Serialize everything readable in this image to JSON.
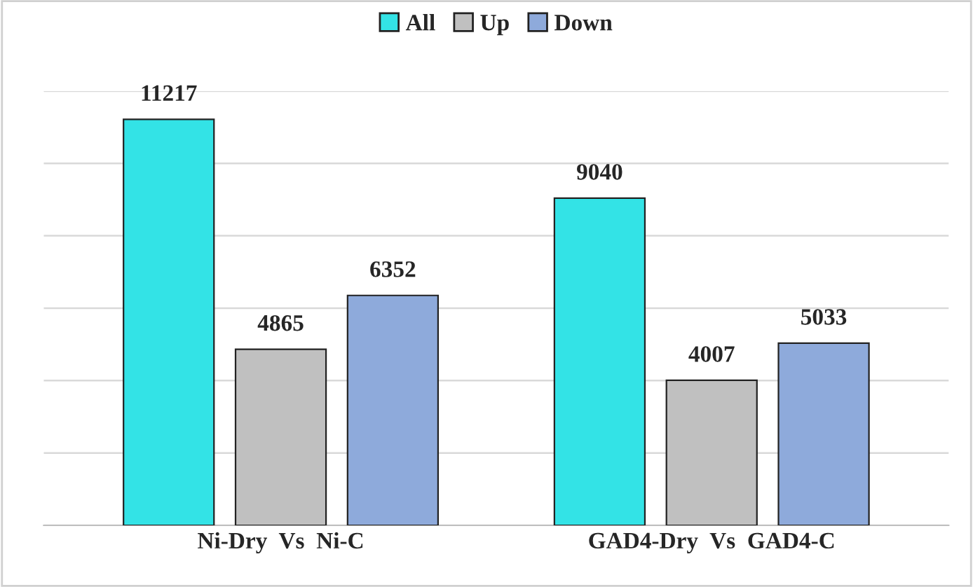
{
  "chart_data": {
    "type": "bar",
    "categories": [
      "Ni-Dry  Vs  Ni-C",
      "GAD4-Dry  Vs  GAD4-C"
    ],
    "series": [
      {
        "name": "All",
        "color": "#33e3e6",
        "values": [
          11217,
          9040
        ]
      },
      {
        "name": "Up",
        "color": "#c0c0c0",
        "values": [
          4865,
          4007
        ]
      },
      {
        "name": "Down",
        "color": "#8eaadb",
        "values": [
          6352,
          5033
        ]
      }
    ],
    "ylim": [
      0,
      12000
    ],
    "yticks": [
      {
        "value": 0,
        "label": null
      },
      {
        "value": 2000,
        "label": null
      },
      {
        "value": 4000,
        "label": null
      },
      {
        "value": 6000,
        "label": null
      },
      {
        "value": 8000,
        "label": null
      },
      {
        "value": 10000,
        "label": null
      },
      {
        "value": 12000,
        "label": null
      }
    ],
    "tick_labels": "x",
    "grid": "y",
    "data_labels": true,
    "legend": "top"
  }
}
